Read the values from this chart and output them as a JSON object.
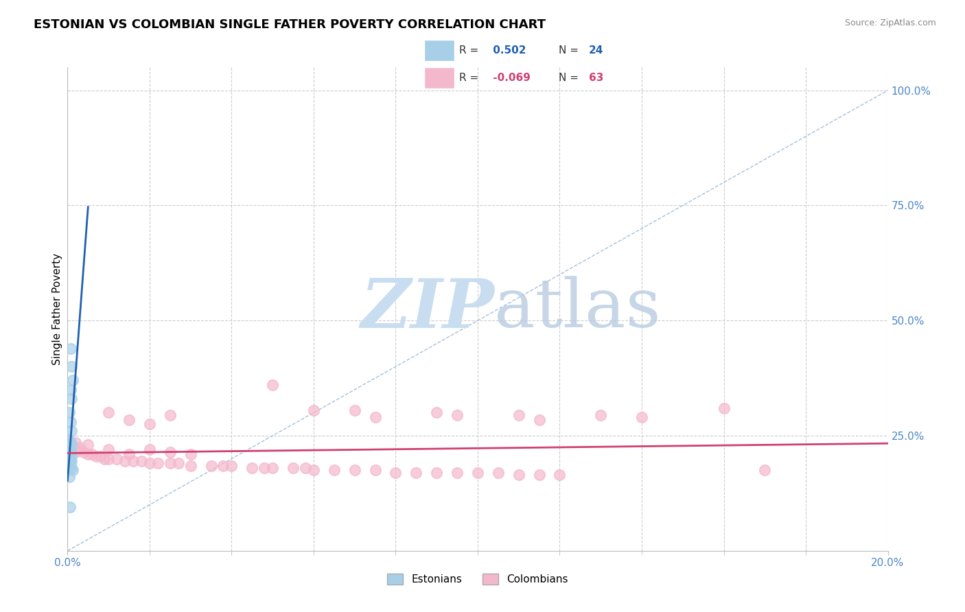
{
  "title": "ESTONIAN VS COLOMBIAN SINGLE FATHER POVERTY CORRELATION CHART",
  "source": "Source: ZipAtlas.com",
  "ylabel": "Single Father Poverty",
  "legend_r_estonian": "0.502",
  "legend_n_estonian": "24",
  "legend_r_colombian": "-0.069",
  "legend_n_colombian": "63",
  "estonian_color": "#a8cfe8",
  "colombian_color": "#f4b8cc",
  "estonian_line_color": "#2060b0",
  "colombian_line_color": "#d04070",
  "trendline_color": "#9ab8d8",
  "xlim": [
    0.0,
    0.2
  ],
  "ylim": [
    0.0,
    1.05
  ],
  "estonian_points": [
    [
      0.0008,
      0.44
    ],
    [
      0.001,
      0.4
    ],
    [
      0.0012,
      0.37
    ],
    [
      0.0008,
      0.35
    ],
    [
      0.001,
      0.33
    ],
    [
      0.0005,
      0.3
    ],
    [
      0.0008,
      0.28
    ],
    [
      0.001,
      0.26
    ],
    [
      0.0005,
      0.24
    ],
    [
      0.0008,
      0.235
    ],
    [
      0.001,
      0.23
    ],
    [
      0.0005,
      0.22
    ],
    [
      0.0007,
      0.215
    ],
    [
      0.0009,
      0.21
    ],
    [
      0.0005,
      0.2
    ],
    [
      0.0007,
      0.2
    ],
    [
      0.0009,
      0.195
    ],
    [
      0.0003,
      0.19
    ],
    [
      0.0005,
      0.185
    ],
    [
      0.0008,
      0.185
    ],
    [
      0.001,
      0.18
    ],
    [
      0.0012,
      0.175
    ],
    [
      0.0004,
      0.16
    ],
    [
      0.0006,
      0.095
    ]
  ],
  "colombian_points": [
    [
      0.002,
      0.215
    ],
    [
      0.003,
      0.22
    ],
    [
      0.004,
      0.215
    ],
    [
      0.005,
      0.21
    ],
    [
      0.006,
      0.21
    ],
    [
      0.007,
      0.205
    ],
    [
      0.008,
      0.205
    ],
    [
      0.009,
      0.2
    ],
    [
      0.01,
      0.2
    ],
    [
      0.012,
      0.2
    ],
    [
      0.014,
      0.195
    ],
    [
      0.016,
      0.195
    ],
    [
      0.018,
      0.195
    ],
    [
      0.02,
      0.19
    ],
    [
      0.022,
      0.19
    ],
    [
      0.025,
      0.19
    ],
    [
      0.027,
      0.19
    ],
    [
      0.03,
      0.185
    ],
    [
      0.035,
      0.185
    ],
    [
      0.038,
      0.185
    ],
    [
      0.04,
      0.185
    ],
    [
      0.045,
      0.18
    ],
    [
      0.048,
      0.18
    ],
    [
      0.05,
      0.18
    ],
    [
      0.055,
      0.18
    ],
    [
      0.058,
      0.18
    ],
    [
      0.06,
      0.175
    ],
    [
      0.065,
      0.175
    ],
    [
      0.07,
      0.175
    ],
    [
      0.075,
      0.175
    ],
    [
      0.08,
      0.17
    ],
    [
      0.085,
      0.17
    ],
    [
      0.09,
      0.17
    ],
    [
      0.095,
      0.17
    ],
    [
      0.1,
      0.17
    ],
    [
      0.105,
      0.17
    ],
    [
      0.11,
      0.165
    ],
    [
      0.115,
      0.165
    ],
    [
      0.12,
      0.165
    ],
    [
      0.002,
      0.235
    ],
    [
      0.003,
      0.225
    ],
    [
      0.005,
      0.23
    ],
    [
      0.01,
      0.22
    ],
    [
      0.015,
      0.21
    ],
    [
      0.02,
      0.22
    ],
    [
      0.025,
      0.215
    ],
    [
      0.03,
      0.21
    ],
    [
      0.01,
      0.3
    ],
    [
      0.015,
      0.285
    ],
    [
      0.02,
      0.275
    ],
    [
      0.025,
      0.295
    ],
    [
      0.05,
      0.36
    ],
    [
      0.06,
      0.305
    ],
    [
      0.07,
      0.305
    ],
    [
      0.075,
      0.29
    ],
    [
      0.09,
      0.3
    ],
    [
      0.095,
      0.295
    ],
    [
      0.11,
      0.295
    ],
    [
      0.115,
      0.285
    ],
    [
      0.13,
      0.295
    ],
    [
      0.14,
      0.29
    ],
    [
      0.16,
      0.31
    ],
    [
      0.17,
      0.175
    ]
  ],
  "diag_line_x": [
    0.0,
    0.2
  ],
  "diag_line_y": [
    0.0,
    1.0
  ]
}
